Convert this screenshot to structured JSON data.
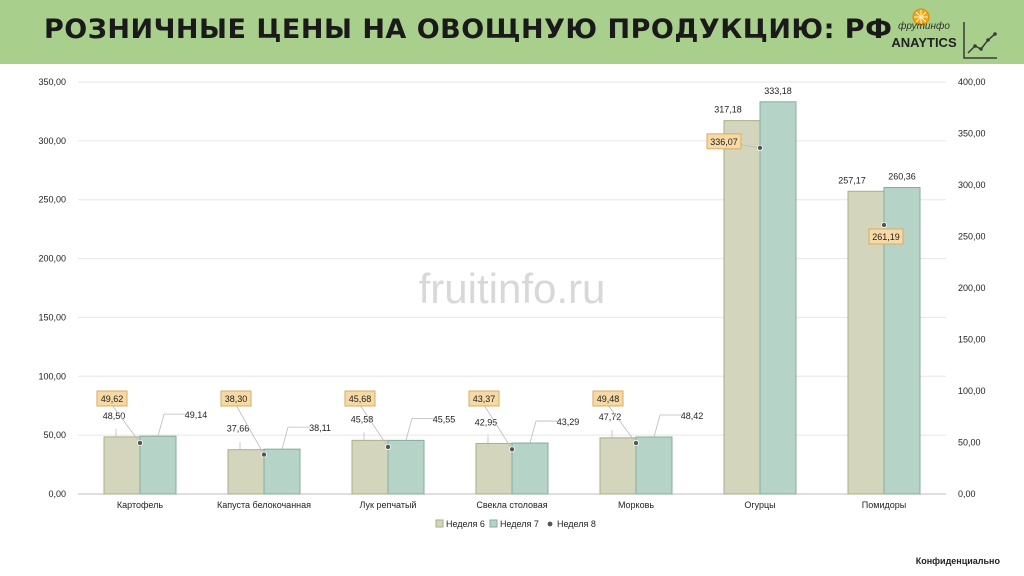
{
  "header": {
    "title": "РОЗНИЧНЫЕ ЦЕНЫ НА ОВОЩНУЮ ПРОДУКЦИЮ: РФ",
    "logo_sub": "фрутинфо",
    "logo_name": "ANAYTICS"
  },
  "watermark": "fruitinfo.ru",
  "footer": "Конфиденциально",
  "colors": {
    "banner": "#a9cf8c",
    "week6_fill": "#d3d6bd",
    "week6_edge": "#a9ad88",
    "week7_fill": "#b6d3c8",
    "week7_edge": "#84ad9e",
    "marker": "#555555",
    "callout_fill": "#f6d9a4",
    "callout_edge": "#d7ad66"
  },
  "chart_data": {
    "type": "bar",
    "categories": [
      "Картофель",
      "Капуста белокочанная",
      "Лук репчатый",
      "Свекла столовая",
      "Морковь",
      "Огурцы",
      "Помидоры"
    ],
    "series": [
      {
        "name": "Неделя 6",
        "kind": "bar",
        "axis": "left",
        "values": [
          48.5,
          37.66,
          45.58,
          42.95,
          47.72,
          317.18,
          257.17
        ],
        "labels": [
          "48,50",
          "37,66",
          "45,58",
          "42,95",
          "47,72",
          "317,18",
          "257,17"
        ]
      },
      {
        "name": "Неделя 7",
        "kind": "bar",
        "axis": "left",
        "values": [
          49.14,
          38.11,
          45.55,
          43.29,
          48.42,
          333.18,
          260.36
        ],
        "labels": [
          "49,14",
          "38,11",
          "45,55",
          "43,29",
          "48,42",
          "333,18",
          "260,36"
        ]
      },
      {
        "name": "Неделя 8",
        "kind": "marker",
        "axis": "right",
        "values": [
          49.62,
          38.3,
          45.68,
          43.37,
          49.48,
          336.07,
          261.19
        ],
        "labels": [
          "49,62",
          "38,30",
          "45,68",
          "43,37",
          "49,48",
          "336,07",
          "261,19"
        ]
      }
    ],
    "y_left": {
      "min": 0,
      "max": 350,
      "step": 50,
      "ticks": [
        "0,00",
        "50,00",
        "100,00",
        "150,00",
        "200,00",
        "250,00",
        "300,00",
        "350,00"
      ]
    },
    "y_right": {
      "min": 0,
      "max": 400,
      "step": 50,
      "ticks": [
        "0,00",
        "50,00",
        "100,00",
        "150,00",
        "200,00",
        "250,00",
        "300,00",
        "350,00",
        "400,00"
      ]
    },
    "grid": true,
    "legend_position": "bottom"
  }
}
